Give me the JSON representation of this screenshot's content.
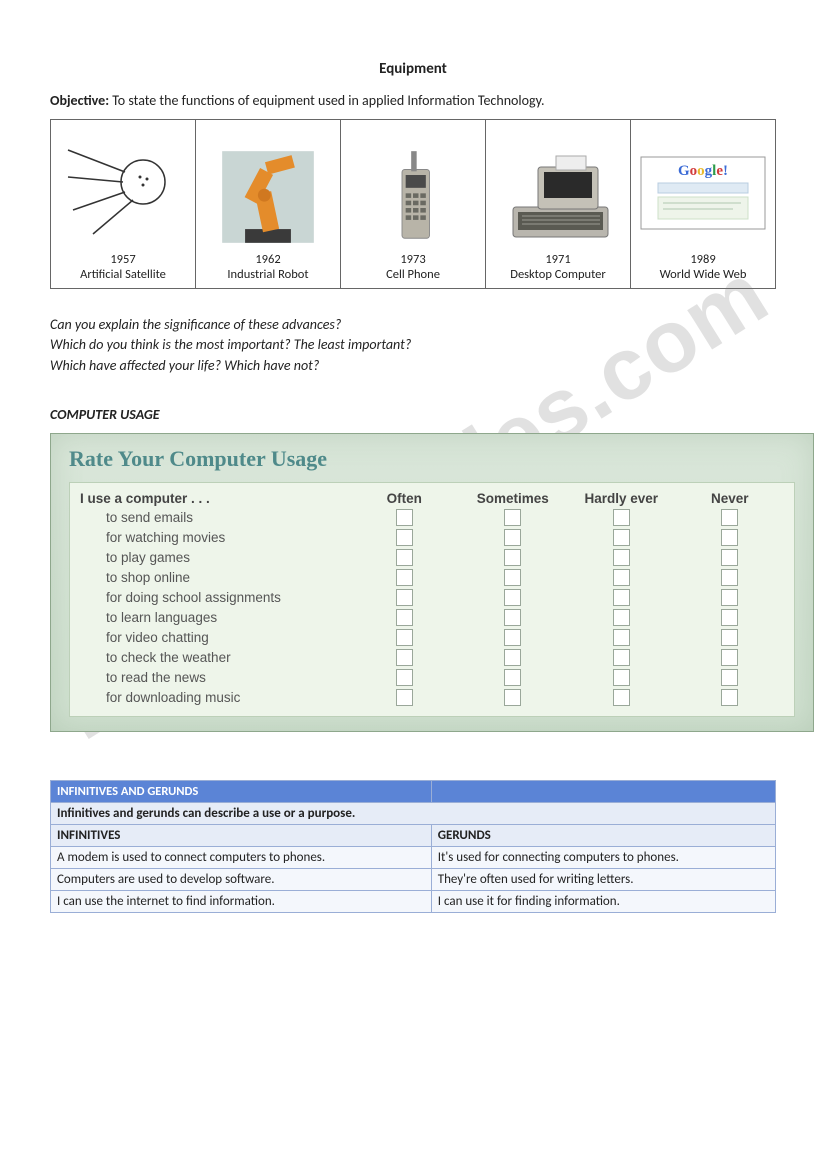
{
  "title": "Equipment",
  "objective_label": "Objective:",
  "objective_text": "  To state the functions of equipment used in applied Information Technology.",
  "timeline": [
    {
      "year": "1957",
      "label": "Artificial Satellite"
    },
    {
      "year": "1962",
      "label": "Industrial Robot"
    },
    {
      "year": "1973",
      "label": "Cell Phone"
    },
    {
      "year": "1971",
      "label": "Desktop Computer"
    },
    {
      "year": "1989",
      "label": "World Wide Web"
    }
  ],
  "questions": [
    "Can you explain the significance of these advances?",
    "Which do you think is the most important? The least important?",
    "Which have affected your life? Which have not?"
  ],
  "section_heading": "COMPUTER USAGE",
  "rate": {
    "title": "Rate Your Computer Usage",
    "lead": "I use a computer . . .",
    "columns": [
      "Often",
      "Sometimes",
      "Hardly ever",
      "Never"
    ],
    "items": [
      "to send emails",
      "for watching movies",
      "to play games",
      "to shop online",
      "for doing school assignments",
      "to learn languages",
      "for video chatting",
      "to check the weather",
      "to read the news",
      "for downloading music"
    ]
  },
  "grammar": {
    "header": "INFINITIVES AND GERUNDS",
    "subtitle": "Infinitives and gerunds can describe a use or a purpose.",
    "col_left": "INFINITIVES",
    "col_right": "GERUNDS",
    "rows": [
      [
        "A modem is used to connect computers to phones.",
        "It's used for connecting computers to phones."
      ],
      [
        "Computers are used to develop software.",
        "They're often used for writing letters."
      ],
      [
        "I can use the internet to find information.",
        "I can use it for finding information."
      ]
    ]
  },
  "watermark": "ESLprintables.com"
}
